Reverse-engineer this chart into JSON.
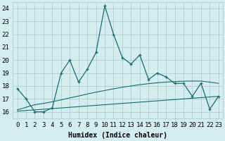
{
  "title": "",
  "xlabel": "Humidex (Indice chaleur)",
  "bg_color": "#d4edf0",
  "line_color": "#1a6b6b",
  "grid_color": "#a8c8cc",
  "x_data": [
    0,
    1,
    2,
    3,
    4,
    5,
    6,
    7,
    8,
    9,
    10,
    11,
    12,
    13,
    14,
    15,
    16,
    17,
    18,
    19,
    20,
    21,
    22,
    23
  ],
  "y_main": [
    17.8,
    17.0,
    16.0,
    16.0,
    16.3,
    19.0,
    20.0,
    18.3,
    19.3,
    20.6,
    24.2,
    22.0,
    20.2,
    19.7,
    20.4,
    18.5,
    19.0,
    18.7,
    18.2,
    18.2,
    17.2,
    18.2,
    16.2,
    17.2
  ],
  "y_trend1": [
    16.05,
    16.1,
    16.15,
    16.2,
    16.25,
    16.3,
    16.35,
    16.4,
    16.45,
    16.5,
    16.55,
    16.6,
    16.65,
    16.7,
    16.75,
    16.8,
    16.85,
    16.9,
    16.95,
    17.0,
    17.05,
    17.1,
    17.15,
    17.2
  ],
  "y_trend2": [
    16.15,
    16.35,
    16.55,
    16.65,
    16.78,
    16.92,
    17.08,
    17.22,
    17.38,
    17.52,
    17.65,
    17.78,
    17.9,
    18.0,
    18.1,
    18.18,
    18.25,
    18.3,
    18.34,
    18.37,
    18.38,
    18.38,
    18.3,
    18.2
  ],
  "ylim": [
    15.5,
    24.5
  ],
  "yticks": [
    16,
    17,
    18,
    19,
    20,
    21,
    22,
    23,
    24
  ],
  "xticks": [
    0,
    1,
    2,
    3,
    4,
    5,
    6,
    7,
    8,
    9,
    10,
    11,
    12,
    13,
    14,
    15,
    16,
    17,
    18,
    19,
    20,
    21,
    22,
    23
  ],
  "xlabel_fontsize": 7,
  "tick_fontsize": 6.5
}
